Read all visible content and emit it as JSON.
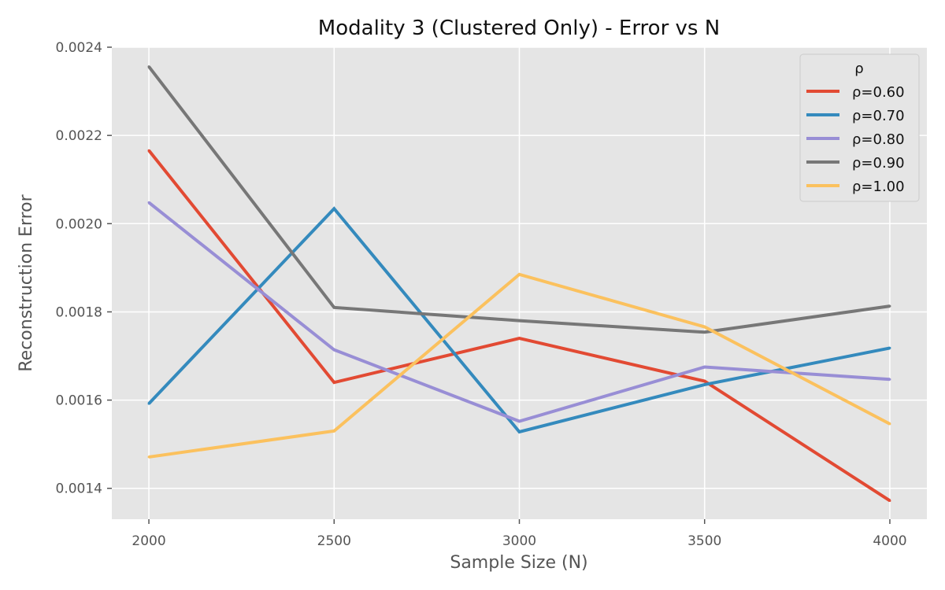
{
  "chart_data": {
    "type": "line",
    "title": "Modality 3 (Clustered Only) - Error vs N",
    "xlabel": "Sample Size (N)",
    "ylabel": "Reconstruction Error",
    "x": [
      2000,
      2500,
      3000,
      3500,
      4000
    ],
    "x_ticks": [
      "2000",
      "2500",
      "3000",
      "3500",
      "4000"
    ],
    "xlim": [
      1900,
      4100
    ],
    "y_ticks": [
      "0.0014",
      "0.0016",
      "0.0018",
      "0.0020",
      "0.0022",
      "0.0024"
    ],
    "y_tick_values": [
      0.0014,
      0.0016,
      0.0018,
      0.002,
      0.0022,
      0.0024
    ],
    "ylim": [
      0.00133,
      0.0024
    ],
    "grid": true,
    "legend": {
      "title": "ρ",
      "placement": "top-right"
    },
    "series": [
      {
        "name": "ρ=0.60",
        "color": "#E24A33",
        "values": [
          0.002166,
          0.00164,
          0.00174,
          0.001643,
          0.001372
        ]
      },
      {
        "name": "ρ=0.70",
        "color": "#348ABD",
        "values": [
          0.001592,
          0.002034,
          0.001528,
          0.001635,
          0.001718
        ]
      },
      {
        "name": "ρ=0.80",
        "color": "#988ED5",
        "values": [
          0.002048,
          0.001714,
          0.001552,
          0.001675,
          0.001647
        ]
      },
      {
        "name": "ρ=0.90",
        "color": "#777777",
        "values": [
          0.002356,
          0.00181,
          0.00178,
          0.001754,
          0.001813
        ]
      },
      {
        "name": "ρ=1.00",
        "color": "#FBC15E",
        "values": [
          0.001471,
          0.00153,
          0.001885,
          0.001766,
          0.001546
        ]
      }
    ]
  }
}
